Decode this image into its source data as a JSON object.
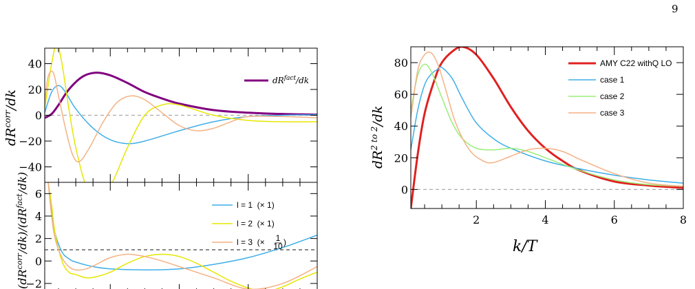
{
  "page_number": "9",
  "chart_data": [
    {
      "id": "top-left",
      "type": "line",
      "ylabel": "dR^{corr}/dk",
      "yticks": [
        "40",
        "20",
        "0",
        "−20",
        "−40"
      ],
      "ylim": [
        -52,
        52
      ],
      "xlim": [
        0.1,
        8
      ],
      "reference_line": 0,
      "legend": {
        "position": "top-right",
        "entries": [
          "dR^{fact}/dk"
        ]
      },
      "series": [
        {
          "name": "dR^{fact}/dk",
          "color": "#800080",
          "width": 3,
          "x": [
            0.1,
            0.3,
            0.5,
            0.8,
            1.2,
            1.6,
            2.0,
            2.5,
            3.0,
            3.5,
            4.0,
            5.0,
            6.0,
            7.0,
            8.0
          ],
          "y": [
            -2,
            1,
            8,
            20,
            30,
            33,
            31,
            25,
            18,
            13,
            9,
            4,
            2,
            1,
            0.5
          ]
        },
        {
          "color": "#3daee8",
          "width": 1.5,
          "x": [
            0.1,
            0.3,
            0.5,
            0.7,
            1.0,
            1.5,
            2.0,
            2.5,
            3.0,
            4.0,
            5.0,
            6.0,
            7.0,
            8.0
          ],
          "y": [
            2,
            18,
            23,
            18,
            5,
            -10,
            -19,
            -22,
            -20,
            -12,
            -5,
            -1,
            0,
            0.5
          ]
        },
        {
          "color": "#e6e600",
          "width": 1.5,
          "x": [
            0.1,
            0.3,
            0.45,
            0.6,
            0.8,
            1.0,
            1.3,
            1.6,
            2.0,
            2.5,
            3.0,
            3.5,
            4.0,
            5.0,
            6.0,
            7.0,
            8.0
          ],
          "y": [
            5,
            40,
            55,
            40,
            5,
            -25,
            -55,
            -62,
            -55,
            -25,
            0,
            8,
            8,
            0,
            -4,
            -5,
            -5
          ]
        },
        {
          "color": "#f4b183",
          "width": 1.5,
          "x": [
            0.1,
            0.2,
            0.35,
            0.5,
            0.7,
            0.9,
            1.1,
            1.4,
            1.8,
            2.2,
            2.6,
            3.0,
            3.5,
            4.0,
            4.5,
            5.0,
            5.5,
            6.0,
            7.0,
            8.0
          ],
          "y": [
            10,
            30,
            33,
            15,
            -10,
            -30,
            -36,
            -25,
            -5,
            10,
            15,
            12,
            2,
            -8,
            -12,
            -10,
            -5,
            -1,
            -1,
            -2
          ]
        }
      ]
    },
    {
      "id": "bottom-left",
      "type": "line",
      "ylabel": "(dR^{corr}/dk)/(dR^{fact}/dk)",
      "yticks": [
        "6",
        "4",
        "2",
        "0",
        "−2"
      ],
      "ylim": [
        -2.8,
        7
      ],
      "xlim": [
        0.1,
        8
      ],
      "reference_line": 1,
      "legend": {
        "position": "top-right",
        "entries": [
          "l = 1  (× 1)",
          "l = 2  (× 1)",
          "l = 3  (× 1/10)"
        ]
      },
      "series": [
        {
          "name": "l = 1  (× 1)",
          "color": "#3daee8",
          "width": 1.5,
          "x": [
            0.2,
            0.3,
            0.4,
            0.6,
            0.8,
            1.0,
            1.5,
            2.0,
            3.0,
            4.0,
            5.0,
            6.0,
            7.0,
            8.0
          ],
          "y": [
            7,
            4.5,
            2.5,
            0.8,
            0.2,
            -0.1,
            -0.5,
            -0.7,
            -0.8,
            -0.7,
            -0.3,
            0.3,
            1.2,
            2.3
          ]
        },
        {
          "name": "l = 2  (× 1)",
          "color": "#e6e600",
          "width": 1.5,
          "x": [
            0.2,
            0.3,
            0.4,
            0.6,
            0.8,
            1.0,
            1.3,
            1.6,
            2.0,
            2.5,
            3.0,
            3.5,
            4.0,
            4.5,
            5.0,
            5.5,
            6.0,
            6.5,
            7.0,
            7.5,
            8.0
          ],
          "y": [
            7,
            5,
            2.5,
            0,
            -1,
            -1.2,
            -1.5,
            -1.4,
            -1.0,
            -0.2,
            0.4,
            0.6,
            0.4,
            -0.2,
            -1.0,
            -1.8,
            -2.4,
            -2.7,
            -2.3,
            -1.6,
            -1.0
          ]
        },
        {
          "name": "l = 3  (× 1/10)",
          "color": "#f4b183",
          "width": 1.5,
          "x": [
            0.2,
            0.3,
            0.4,
            0.6,
            0.8,
            1.0,
            1.3,
            1.6,
            2.0,
            2.5,
            3.0,
            3.5,
            4.0,
            5.0,
            6.0,
            7.0,
            8.0
          ],
          "y": [
            7,
            4,
            2,
            0.3,
            -0.5,
            -0.8,
            -0.7,
            -0.3,
            0.3,
            0.6,
            0.4,
            0,
            -0.5,
            -1.5,
            -2.5,
            -2.0,
            -0.5
          ]
        }
      ]
    },
    {
      "id": "right",
      "type": "line",
      "xlabel": "k/T",
      "ylabel": "dR^{2 to 2}/dk",
      "xticks": [
        "2",
        "4",
        "6",
        "8"
      ],
      "yticks": [
        "80",
        "60",
        "40",
        "20",
        "0"
      ],
      "xlim": [
        0.1,
        8
      ],
      "ylim": [
        -12,
        90
      ],
      "reference_line": 0,
      "legend": {
        "position": "top-right",
        "entries": [
          "AMY C22 withQ LO",
          "case 1",
          "case 2",
          "case 3"
        ]
      },
      "series": [
        {
          "name": "AMY C22 withQ LO",
          "color": "#e02020",
          "width": 3,
          "x": [
            0.1,
            0.3,
            0.5,
            0.8,
            1.0,
            1.3,
            1.6,
            2.0,
            2.5,
            3.0,
            3.5,
            4.0,
            4.5,
            5.0,
            6.0,
            7.0,
            8.0
          ],
          "y": [
            -12,
            22,
            48,
            70,
            80,
            87,
            90,
            85,
            70,
            52,
            37,
            26,
            18,
            12,
            5,
            2.5,
            1
          ]
        },
        {
          "name": "case 1",
          "color": "#3daee8",
          "width": 1.5,
          "x": [
            0.1,
            0.3,
            0.5,
            0.7,
            0.9,
            1.0,
            1.3,
            1.6,
            2.0,
            2.5,
            3.0,
            4.0,
            5.0,
            6.0,
            7.0,
            8.0
          ],
          "y": [
            25,
            50,
            66,
            73,
            76,
            77,
            70,
            57,
            42,
            32,
            26,
            18,
            13,
            9,
            6,
            4
          ]
        },
        {
          "name": "case 2",
          "color": "#99ee77",
          "width": 1.5,
          "x": [
            0.1,
            0.3,
            0.5,
            0.7,
            1.0,
            1.3,
            1.6,
            2.0,
            2.5,
            3.0,
            3.5,
            4.0,
            5.0,
            6.0,
            7.0,
            8.0
          ],
          "y": [
            50,
            72,
            79,
            74,
            58,
            42,
            32,
            26,
            25,
            26,
            24,
            20,
            12,
            6,
            3,
            2
          ]
        },
        {
          "name": "case 3",
          "color": "#f4b183",
          "width": 1.5,
          "x": [
            0.1,
            0.3,
            0.5,
            0.7,
            0.9,
            1.1,
            1.4,
            1.8,
            2.2,
            2.5,
            3.0,
            3.5,
            4.0,
            4.5,
            5.0,
            6.0,
            7.0,
            8.0
          ],
          "y": [
            45,
            75,
            85,
            86,
            78,
            64,
            42,
            25,
            18,
            17,
            21,
            25,
            26,
            24,
            19,
            10,
            4,
            2
          ]
        }
      ]
    }
  ]
}
